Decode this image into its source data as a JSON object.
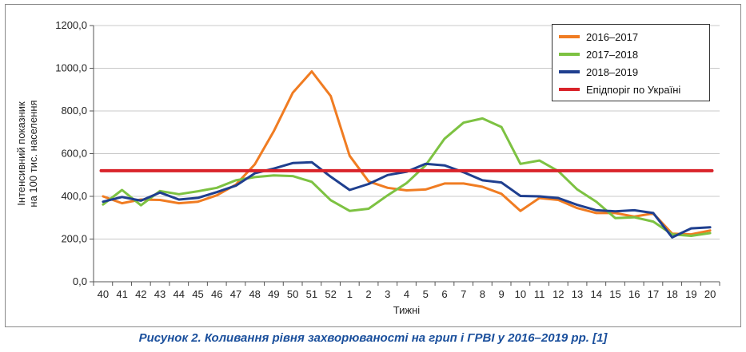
{
  "caption": "Рисунок 2. Коливання рівня захворюваності на грип і ГРВІ у 2016–2019 рр. [1]",
  "chart_data": {
    "type": "line",
    "xlabel": "Тижні",
    "ylabel_line1": "Інтенсивний показник",
    "ylabel_line2": "на 100 тис. населення",
    "ylim": [
      0,
      1200
    ],
    "yticks": [
      "0,0",
      "200,0",
      "400,0",
      "600,0",
      "800,0",
      "1000,0",
      "1200,0"
    ],
    "ytick_values": [
      0,
      200,
      400,
      600,
      800,
      1000,
      1200
    ],
    "grid": true,
    "legend_position": "top-right",
    "categories": [
      "40",
      "41",
      "42",
      "43",
      "44",
      "45",
      "46",
      "47",
      "48",
      "49",
      "50",
      "51",
      "52",
      "1",
      "2",
      "3",
      "4",
      "5",
      "6",
      "7",
      "8",
      "9",
      "10",
      "11",
      "12",
      "13",
      "14",
      "15",
      "16",
      "17",
      "18",
      "19",
      "20"
    ],
    "series": [
      {
        "name": "2016–2017",
        "color": "#f07c22",
        "values": [
          400,
          368,
          385,
          383,
          368,
          375,
          405,
          455,
          550,
          705,
          885,
          985,
          870,
          590,
          470,
          440,
          428,
          432,
          460,
          460,
          445,
          412,
          332,
          392,
          383,
          345,
          322,
          322,
          305,
          320,
          225,
          222,
          240
        ]
      },
      {
        "name": "2017–2018",
        "color": "#7dc242",
        "values": [
          362,
          430,
          358,
          425,
          410,
          424,
          440,
          475,
          490,
          498,
          495,
          468,
          382,
          332,
          342,
          405,
          462,
          545,
          670,
          745,
          765,
          725,
          552,
          568,
          518,
          432,
          375,
          298,
          302,
          282,
          222,
          215,
          228
        ]
      },
      {
        "name": "2018–2019",
        "color": "#1f3f8f",
        "values": [
          375,
          397,
          380,
          418,
          385,
          393,
          420,
          450,
          508,
          530,
          556,
          560,
          492,
          430,
          458,
          500,
          515,
          552,
          545,
          513,
          475,
          465,
          402,
          400,
          392,
          360,
          335,
          330,
          335,
          322,
          208,
          250,
          255
        ]
      },
      {
        "name": "Епідпоріг по Україні",
        "color": "#d9232a",
        "values": [
          520,
          520,
          520,
          520,
          520,
          520,
          520,
          520,
          520,
          520,
          520,
          520,
          520,
          520,
          520,
          520,
          520,
          520,
          520,
          520,
          520,
          520,
          520,
          520,
          520,
          520,
          520,
          520,
          520,
          520,
          520,
          520,
          520
        ]
      }
    ]
  }
}
